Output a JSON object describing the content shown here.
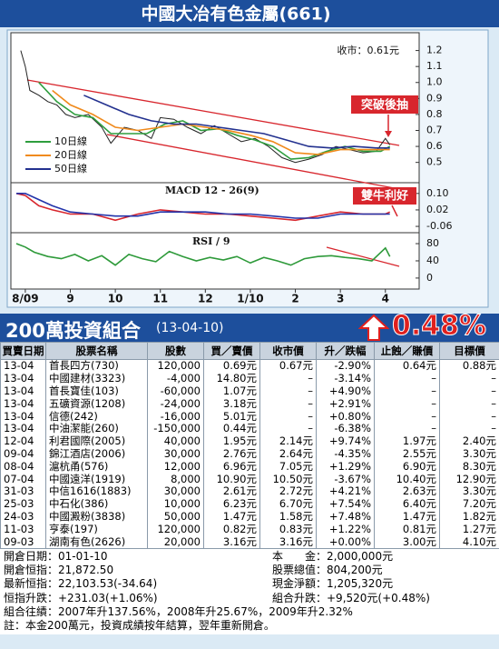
{
  "chart_data": {
    "type": "line",
    "title": "中國大冶有色金屬(661)",
    "annotations": {
      "close_label": "收市：0.61元",
      "breakout": "突破後抽",
      "macd_note": "雙牛利好"
    },
    "xlim": [
      -0.26,
      8.67
    ],
    "xticks": [
      {
        "value": 0,
        "label": "8/09"
      },
      {
        "value": 1,
        "label": "9"
      },
      {
        "value": 2,
        "label": "10"
      },
      {
        "value": 3,
        "label": "11"
      },
      {
        "value": 4,
        "label": "12"
      },
      {
        "value": 5,
        "label": "1/10"
      },
      {
        "value": 6,
        "label": "2"
      },
      {
        "value": 7,
        "label": "3"
      },
      {
        "value": 8,
        "label": "4"
      }
    ],
    "panels": [
      {
        "ylim": [
          0.39,
          1.3
        ],
        "yticks": [
          1.2,
          1.1,
          {
            "value": 1,
            "label": "1.0"
          },
          0.9,
          0.8,
          0.7,
          0.6,
          0.5
        ],
        "legend": "lower left",
        "series": [
          {
            "color": "#222222",
            "x": [
              -0.1,
              0,
              0.1,
              0.3,
              0.5,
              0.7,
              0.9,
              1.1,
              1.4,
              1.7,
              1.9,
              2.2,
              2.5,
              2.8,
              3.0,
              3.3,
              3.6,
              3.9,
              4.2,
              4.5,
              4.8,
              5.1,
              5.4,
              5.7,
              6.0,
              6.3,
              6.6,
              6.9,
              7.2,
              7.5,
              7.8,
              8.0,
              8.1
            ],
            "values": [
              1.2,
              1.1,
              0.95,
              0.92,
              0.88,
              0.86,
              0.8,
              0.78,
              0.8,
              0.72,
              0.62,
              0.72,
              0.7,
              0.65,
              0.78,
              0.77,
              0.72,
              0.68,
              0.73,
              0.68,
              0.63,
              0.65,
              0.6,
              0.53,
              0.5,
              0.52,
              0.55,
              0.6,
              0.58,
              0.56,
              0.57,
              0.65,
              0.61
            ]
          },
          {
            "name": "10日線",
            "color": "#2e9e3e",
            "x": [
              0.3,
              0.7,
              1.1,
              1.5,
              1.9,
              2.3,
              2.7,
              3.1,
              3.5,
              3.9,
              4.3,
              4.7,
              5.1,
              5.5,
              5.9,
              6.3,
              6.7,
              7.1,
              7.5,
              7.9,
              8.1
            ],
            "values": [
              1.0,
              0.88,
              0.8,
              0.78,
              0.68,
              0.68,
              0.68,
              0.74,
              0.76,
              0.7,
              0.71,
              0.67,
              0.64,
              0.6,
              0.52,
              0.53,
              0.57,
              0.6,
              0.57,
              0.57,
              0.6
            ]
          },
          {
            "name": "20日線",
            "color": "#f08a1c",
            "x": [
              0.6,
              1.0,
              1.5,
              2.0,
              2.5,
              3.0,
              3.5,
              4.0,
              4.5,
              5.0,
              5.5,
              6.0,
              6.5,
              7.0,
              7.5,
              8.1
            ],
            "values": [
              0.95,
              0.86,
              0.8,
              0.72,
              0.7,
              0.72,
              0.74,
              0.72,
              0.7,
              0.67,
              0.63,
              0.56,
              0.55,
              0.58,
              0.58,
              0.58
            ]
          },
          {
            "name": "50日線",
            "color": "#23318f",
            "x": [
              1.3,
              1.8,
              2.3,
              2.8,
              3.3,
              3.8,
              4.3,
              4.8,
              5.3,
              5.8,
              6.3,
              6.8,
              7.3,
              7.8,
              8.1
            ],
            "values": [
              0.92,
              0.86,
              0.8,
              0.76,
              0.74,
              0.74,
              0.72,
              0.7,
              0.68,
              0.64,
              0.6,
              0.59,
              0.6,
              0.59,
              0.59
            ]
          }
        ]
      },
      {
        "title": "MACD 12 - 26(9)",
        "ylim": [
          -0.073,
          0.139
        ],
        "yticks": [
          {
            "value": 0.1,
            "label": "0.10"
          },
          0.02,
          -0.06
        ],
        "series": [
          {
            "color": "#d8262d",
            "x": [
              -0.2,
              0,
              0.3,
              0.6,
              1,
              1.5,
              2,
              2.5,
              3,
              3.5,
              4,
              4.5,
              5,
              5.5,
              6,
              6.5,
              7,
              7.5,
              8,
              8.1
            ],
            "values": [
              0.1,
              0.09,
              0.04,
              0.02,
              0.0,
              0.0,
              -0.03,
              0.0,
              0.02,
              0.01,
              0.0,
              0.0,
              -0.01,
              -0.02,
              -0.03,
              -0.01,
              0.01,
              0.0,
              0.0,
              0.01
            ]
          },
          {
            "color": "#2233aa",
            "x": [
              -0.2,
              0,
              0.3,
              0.6,
              1,
              1.5,
              2,
              2.5,
              3,
              3.5,
              4,
              4.5,
              5,
              5.5,
              6,
              6.5,
              7,
              7.5,
              8,
              8.1
            ],
            "values": [
              0.1,
              0.1,
              0.07,
              0.04,
              0.01,
              0.0,
              -0.01,
              -0.01,
              0.01,
              0.01,
              0.01,
              0.0,
              0.0,
              -0.01,
              -0.02,
              -0.02,
              0.0,
              0.0,
              0.0,
              0.0
            ]
          }
        ]
      },
      {
        "title": "RSI / 9",
        "ylim": [
          -15,
          97
        ],
        "yticks": [
          80,
          40,
          0
        ],
        "series": [
          {
            "color": "#2e9a3a",
            "x": [
              -0.2,
              0,
              0.2,
              0.5,
              0.8,
              1.1,
              1.4,
              1.7,
              2.0,
              2.3,
              2.6,
              2.9,
              3.2,
              3.5,
              3.8,
              4.1,
              4.4,
              4.7,
              5.0,
              5.3,
              5.6,
              5.9,
              6.2,
              6.5,
              6.8,
              7.1,
              7.4,
              7.7,
              8.0,
              8.1
            ],
            "values": [
              80,
              72,
              60,
              50,
              45,
              55,
              40,
              52,
              30,
              55,
              45,
              38,
              62,
              50,
              40,
              48,
              42,
              50,
              35,
              48,
              40,
              30,
              45,
              50,
              52,
              48,
              45,
              40,
              70,
              50
            ]
          }
        ]
      }
    ]
  },
  "portfolio": {
    "title": "200萬投資組合",
    "date": "(13-04-10)",
    "return": "0.48%",
    "columns": [
      "買賣日期",
      "股票名稱",
      "股數",
      "買／賣價",
      "收市價",
      "升／跌幅",
      "止蝕／賺價",
      "目標價"
    ],
    "rows": [
      [
        "13-04",
        "首長四方(730)",
        "120,000",
        "0.69元",
        "0.67元",
        "-2.90%",
        "0.64元",
        "0.88元"
      ],
      [
        "13-04",
        "中國建材(3323)",
        "-4,000",
        "14.80元",
        "–",
        "-3.14%",
        "–",
        "–"
      ],
      [
        "13-04",
        "首長寶佳(103)",
        "-60,000",
        "1.07元",
        "–",
        "+4.90%",
        "–",
        "–"
      ],
      [
        "13-04",
        "五礦資源(1208)",
        "-24,000",
        "3.18元",
        "–",
        "+2.91%",
        "–",
        "–"
      ],
      [
        "13-04",
        "信德(242)",
        "-16,000",
        "5.01元",
        "–",
        "+0.80%",
        "–",
        "–"
      ],
      [
        "13-04",
        "中油潔能(260)",
        "-150,000",
        "0.44元",
        "–",
        "-6.38%",
        "–",
        "–"
      ],
      [
        "12-04",
        "利君國際(2005)",
        "40,000",
        "1.95元",
        "2.14元",
        "+9.74%",
        "1.97元",
        "2.40元"
      ],
      [
        "09-04",
        "錦江酒店(2006)",
        "30,000",
        "2.76元",
        "2.64元",
        "-4.35%",
        "2.55元",
        "3.30元"
      ],
      [
        "08-04",
        "滬杭甬(576)",
        "12,000",
        "6.96元",
        "7.05元",
        "+1.29%",
        "6.90元",
        "8.30元"
      ],
      [
        "07-04",
        "中國遠洋(1919)",
        "8,000",
        "10.90元",
        "10.50元",
        "-3.67%",
        "10.40元",
        "12.90元"
      ],
      [
        "31-03",
        "中信1616(1883)",
        "30,000",
        "2.61元",
        "2.72元",
        "+4.21%",
        "2.63元",
        "3.30元"
      ],
      [
        "25-03",
        "中石化(386)",
        "10,000",
        "6.23元",
        "6.70元",
        "+7.54%",
        "6.40元",
        "7.20元"
      ],
      [
        "24-03",
        "中國澱粉(3838)",
        "50,000",
        "1.47元",
        "1.58元",
        "+7.48%",
        "1.47元",
        "1.82元"
      ],
      [
        "11-03",
        "亨泰(197)",
        "120,000",
        "0.82元",
        "0.83元",
        "+1.22%",
        "0.81元",
        "1.27元"
      ],
      [
        "09-03",
        "湖南有色(2626)",
        "20,000",
        "3.16元",
        "3.16元",
        "+0.00%",
        "3.00元",
        "4.10元"
      ]
    ],
    "summary": [
      [
        "開倉日期：01-01-10",
        "本　　金：2,000,000元"
      ],
      [
        "開倉恒指：21,872.50",
        "股票總值：804,200元"
      ],
      [
        "最新恒指：22,103.53(-34.64)",
        "現金淨額：1,205,320元"
      ],
      [
        "恒指升跌：+231.03(+1.06%)",
        "組合升跌：+9,520元(+0.48%)"
      ]
    ],
    "record": "組合往績：2007年升137.56%，2008年升25.67%，2009年升2.32%",
    "note": "註：本金200萬元，投資成績按年結算，翌年重新開倉。"
  }
}
